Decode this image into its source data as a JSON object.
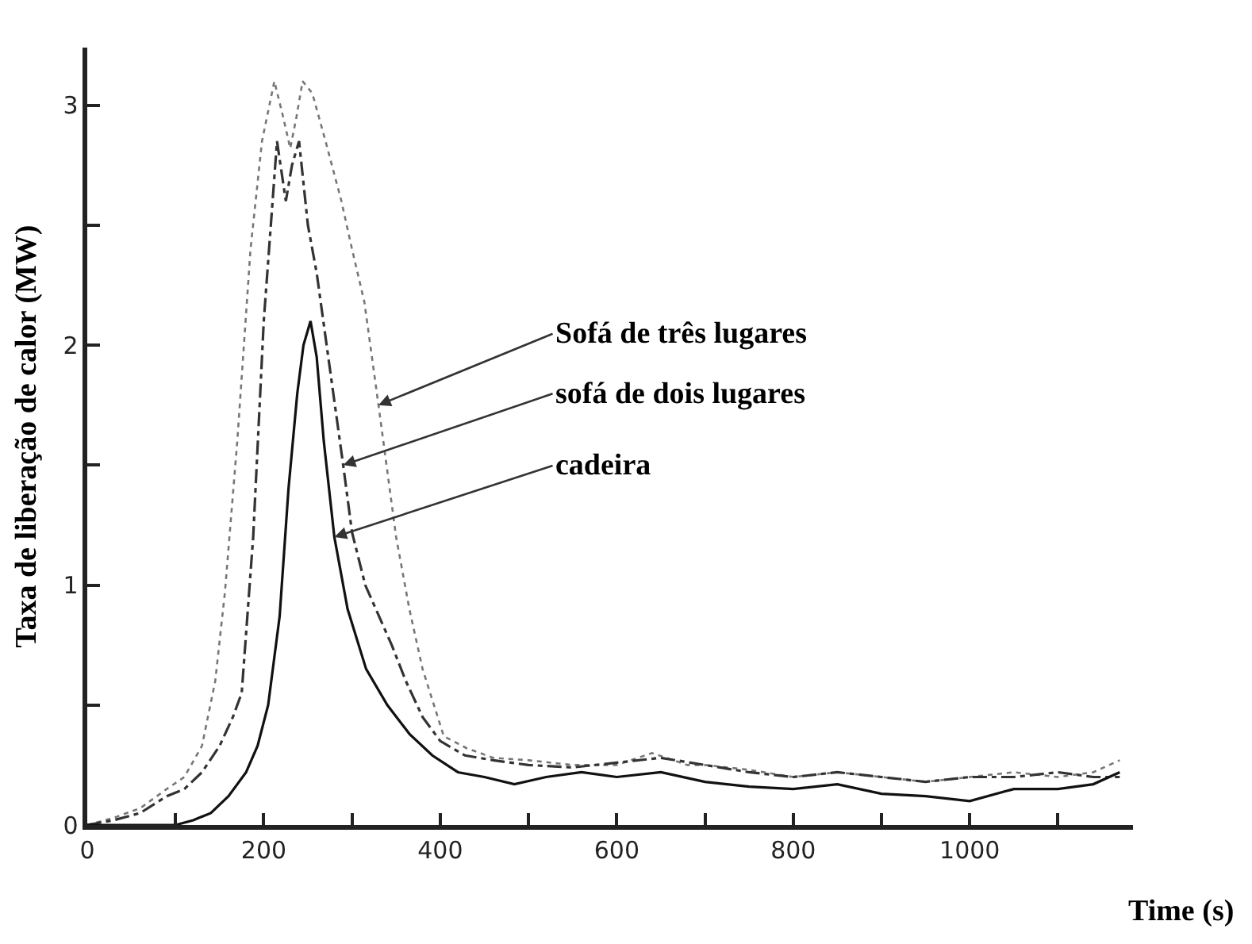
{
  "chart_data": {
    "type": "line",
    "xlabel": "Time (s)",
    "ylabel": "Taxa de liberação de calor (MW)",
    "xlim": [
      0,
      1185
    ],
    "ylim": [
      0,
      3.24
    ],
    "xticks": [
      0,
      {
        "value": 100,
        "label": null
      },
      200,
      {
        "value": 300,
        "label": null
      },
      400,
      {
        "value": 500,
        "label": null
      },
      600,
      {
        "value": 700,
        "label": null
      },
      800,
      {
        "value": 900,
        "label": null
      },
      1000,
      {
        "value": 1100,
        "label": null
      }
    ],
    "yticks": [
      0,
      {
        "value": 0.5,
        "label": null
      },
      1,
      {
        "value": 1.5,
        "label": null
      },
      2,
      {
        "value": 2.5,
        "label": null
      },
      3
    ],
    "marker": "none",
    "series": [
      {
        "color": "#777777",
        "line_style": "dotted",
        "x": [
          0,
          30,
          60,
          90,
          110,
          130,
          145,
          156,
          170,
          185,
          198,
          212,
          222,
          230,
          237,
          244,
          255,
          270,
          288,
          300,
          314,
          330,
          350,
          365,
          380,
          404,
          430,
          460,
          500,
          550,
          600,
          640,
          680,
          700,
          750,
          800,
          850,
          900,
          950,
          1000,
          1050,
          1100,
          1140,
          1170
        ],
        "values": [
          0,
          0.03,
          0.07,
          0.15,
          0.2,
          0.33,
          0.6,
          0.97,
          1.6,
          2.4,
          2.85,
          3.1,
          2.95,
          2.82,
          2.95,
          3.1,
          3.05,
          2.85,
          2.6,
          2.4,
          2.18,
          1.75,
          1.2,
          0.9,
          0.65,
          0.37,
          0.32,
          0.28,
          0.27,
          0.25,
          0.25,
          0.3,
          0.25,
          0.25,
          0.23,
          0.2,
          0.22,
          0.2,
          0.18,
          0.2,
          0.22,
          0.2,
          0.22,
          0.27
        ]
      },
      {
        "color": "#333333",
        "line_style": "dashed",
        "x": [
          0,
          30,
          60,
          90,
          110,
          130,
          150,
          165,
          175,
          188,
          200,
          215,
          225,
          232,
          240,
          250,
          260,
          275,
          290,
          300,
          315,
          333,
          345,
          361,
          380,
          400,
          428,
          460,
          500,
          550,
          600,
          650,
          700,
          750,
          800,
          850,
          900,
          950,
          1000,
          1050,
          1100,
          1140,
          1170
        ],
        "values": [
          0,
          0.02,
          0.05,
          0.12,
          0.15,
          0.22,
          0.33,
          0.45,
          0.55,
          1.2,
          2.1,
          2.85,
          2.6,
          2.75,
          2.85,
          2.5,
          2.3,
          1.9,
          1.5,
          1.22,
          1.0,
          0.85,
          0.75,
          0.6,
          0.45,
          0.35,
          0.29,
          0.27,
          0.25,
          0.24,
          0.26,
          0.28,
          0.25,
          0.22,
          0.2,
          0.22,
          0.2,
          0.18,
          0.2,
          0.2,
          0.22,
          0.2,
          0.2
        ]
      },
      {
        "color": "#111111",
        "line_style": "solid",
        "x": [
          0,
          50,
          100,
          120,
          140,
          160,
          180,
          193,
          205,
          218,
          228,
          238,
          245,
          253,
          260,
          268,
          280,
          295,
          316,
          340,
          365,
          391,
          420,
          450,
          484,
          520,
          560,
          600,
          650,
          700,
          750,
          800,
          850,
          900,
          950,
          1000,
          1050,
          1100,
          1140,
          1170
        ],
        "values": [
          0,
          0,
          0,
          0.02,
          0.05,
          0.12,
          0.22,
          0.33,
          0.5,
          0.87,
          1.4,
          1.8,
          2.0,
          2.1,
          1.95,
          1.6,
          1.2,
          0.9,
          0.65,
          0.5,
          0.38,
          0.29,
          0.22,
          0.2,
          0.17,
          0.2,
          0.22,
          0.2,
          0.22,
          0.18,
          0.16,
          0.15,
          0.17,
          0.13,
          0.12,
          0.1,
          0.15,
          0.15,
          0.17,
          0.22
        ]
      }
    ],
    "annotations": [
      {
        "text": "Sofá de três lugares",
        "x": 330,
        "y": 1.75
      },
      {
        "text": "sofá de dois lugares",
        "x": 290,
        "y": 1.5
      },
      {
        "text": "cadeira",
        "x": 280,
        "y": 1.2
      }
    ]
  }
}
